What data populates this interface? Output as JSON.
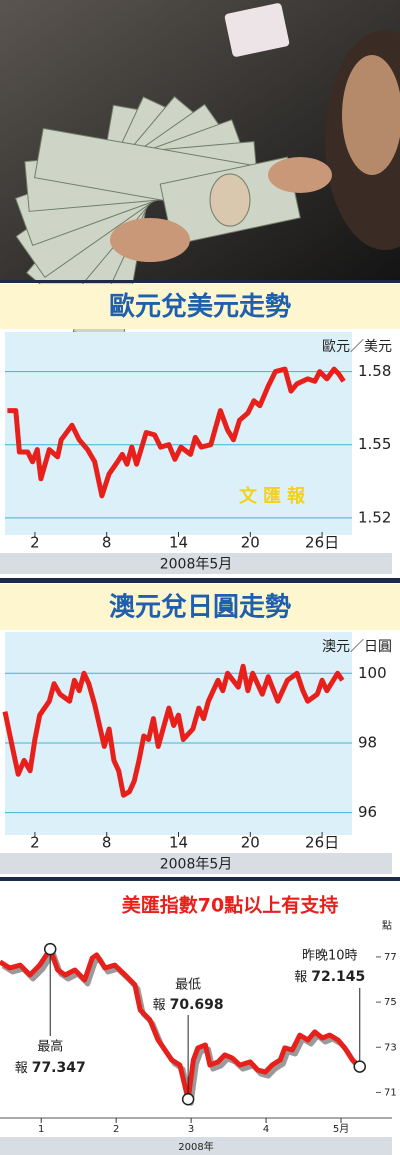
{
  "chart_data": [
    {
      "type": "line",
      "title": "歐元兌美元走勢",
      "y_unit": "歐元／美元",
      "x_label": "2008年5月",
      "watermark": "文匯報",
      "grid": true,
      "y_axis_side": "right",
      "xlim": [
        -0.5,
        28.5
      ],
      "xticks": [
        2,
        8,
        14,
        20,
        {
          "value": 26,
          "label": "26日"
        }
      ],
      "ylim": [
        1.515,
        1.595
      ],
      "yticks": [
        1.52,
        1.55,
        1.58
      ],
      "x": [
        -0.3,
        0.4,
        0.7,
        1.4,
        1.8,
        2.2,
        2.5,
        3.2,
        3.9,
        4.2,
        5.1,
        5.7,
        6.4,
        7.0,
        7.6,
        8.2,
        8.9,
        9.3,
        9.7,
        10.1,
        10.5,
        11.3,
        12.0,
        12.5,
        13.2,
        13.7,
        14.2,
        15.0,
        15.4,
        15.9,
        16.7,
        17.5,
        18.1,
        18.6,
        19.1,
        19.8,
        20.3,
        20.8,
        21.5,
        22.1,
        22.9,
        23.4,
        23.9,
        24.8,
        25.4,
        25.8,
        26.4,
        27.0,
        27.4,
        27.8
      ],
      "series": [
        {
          "color": "#e8201c",
          "values": [
            1.564,
            1.564,
            1.547,
            1.547,
            1.543,
            1.548,
            1.536,
            1.548,
            1.545,
            1.552,
            1.558,
            1.552,
            1.548,
            1.543,
            1.529,
            1.538,
            1.543,
            1.546,
            1.542,
            1.549,
            1.542,
            1.555,
            1.554,
            1.549,
            1.55,
            1.544,
            1.549,
            1.546,
            1.553,
            1.549,
            1.55,
            1.564,
            1.556,
            1.552,
            1.56,
            1.563,
            1.568,
            1.566,
            1.574,
            1.58,
            1.581,
            1.572,
            1.575,
            1.577,
            1.576,
            1.58,
            1.577,
            1.581,
            1.579,
            1.576
          ]
        }
      ]
    },
    {
      "type": "line",
      "title": "澳元兌日圓走勢",
      "y_unit": "澳元／日圓",
      "x_label": "2008年5月",
      "grid": true,
      "y_axis_side": "right",
      "xlim": [
        -0.5,
        28.5
      ],
      "xticks": [
        2,
        8,
        14,
        20,
        {
          "value": 26,
          "label": "26日"
        }
      ],
      "ylim": [
        95.5,
        101.1
      ],
      "yticks": [
        96,
        98,
        100
      ],
      "x": [
        -0.5,
        0.1,
        0.6,
        1.1,
        1.6,
        2.0,
        2.4,
        3.2,
        3.6,
        4.1,
        4.9,
        5.3,
        5.7,
        6.1,
        6.5,
        7.0,
        7.4,
        7.8,
        8.2,
        8.6,
        9.0,
        9.4,
        9.9,
        10.3,
        10.7,
        11.1,
        11.5,
        11.9,
        12.3,
        13.2,
        13.6,
        14.0,
        14.4,
        15.2,
        15.7,
        16.1,
        16.5,
        17.3,
        17.7,
        18.1,
        19.0,
        19.4,
        19.8,
        20.2,
        21.0,
        21.5,
        22.3,
        23.1,
        23.9,
        24.4,
        24.8,
        25.6,
        26.0,
        26.4,
        27.3,
        27.7
      ],
      "series": [
        {
          "color": "#e8201c",
          "values": [
            98.9,
            97.9,
            97.1,
            97.5,
            97.2,
            98.1,
            98.8,
            99.2,
            99.7,
            99.4,
            99.2,
            99.8,
            99.5,
            100.0,
            99.7,
            99.1,
            98.5,
            97.9,
            98.4,
            97.5,
            97.2,
            96.5,
            96.6,
            96.9,
            97.5,
            98.2,
            98.1,
            98.7,
            97.9,
            99.0,
            98.5,
            98.8,
            98.1,
            98.4,
            99.0,
            98.7,
            99.2,
            99.8,
            99.5,
            100.0,
            99.6,
            100.2,
            99.5,
            100.0,
            99.4,
            99.9,
            99.2,
            99.8,
            100.0,
            99.5,
            99.2,
            99.4,
            99.8,
            99.5,
            100.0,
            99.8
          ]
        }
      ]
    },
    {
      "type": "line",
      "title": "美匯指數70點以上有支持",
      "y_unit": "點",
      "x_label": "2008年",
      "grid": false,
      "y_axis_side": "right",
      "shadow_color": "#9a9a9a",
      "xlim": [
        0.45,
        5.4
      ],
      "xticks": [
        1,
        2,
        3,
        4,
        {
          "value": 5,
          "label": "5月"
        }
      ],
      "ylim": [
        70,
        77.75
      ],
      "yticks": [
        71,
        73,
        75,
        77
      ],
      "x": [
        0.45,
        0.58,
        0.72,
        0.85,
        0.98,
        1.12,
        1.22,
        1.32,
        1.45,
        1.58,
        1.68,
        1.74,
        1.85,
        1.98,
        2.12,
        2.25,
        2.32,
        2.45,
        2.56,
        2.65,
        2.74,
        2.85,
        2.96,
        3.03,
        3.09,
        3.19,
        3.25,
        3.36,
        3.45,
        3.55,
        3.65,
        3.79,
        3.89,
        3.99,
        4.08,
        4.19,
        4.25,
        4.35,
        4.45,
        4.56,
        4.65,
        4.75,
        4.85,
        4.96,
        5.05,
        5.15,
        5.25
      ],
      "series": [
        {
          "color": "#e8201c",
          "values": [
            76.78,
            76.51,
            76.64,
            76.2,
            76.64,
            77.347,
            76.42,
            76.2,
            76.42,
            75.98,
            76.95,
            77.09,
            76.51,
            76.64,
            76.2,
            75.76,
            74.65,
            74.21,
            73.32,
            72.88,
            72.44,
            72.21,
            70.698,
            72.44,
            72.97,
            73.1,
            72.21,
            72.35,
            72.66,
            72.52,
            72.21,
            72.35,
            71.99,
            71.9,
            72.21,
            72.44,
            72.97,
            72.88,
            73.54,
            73.32,
            73.68,
            73.41,
            73.54,
            73.32,
            72.97,
            72.44,
            72.145
          ]
        }
      ],
      "annotations": [
        {
          "title": "最高",
          "prefix": "報",
          "value": 77.347,
          "x": 1.12
        },
        {
          "title": "最低",
          "prefix": "報",
          "value": 70.698,
          "x": 2.96
        },
        {
          "title": "昨晚10時",
          "prefix": "報",
          "value": 72.145,
          "x": 5.25
        }
      ]
    }
  ]
}
